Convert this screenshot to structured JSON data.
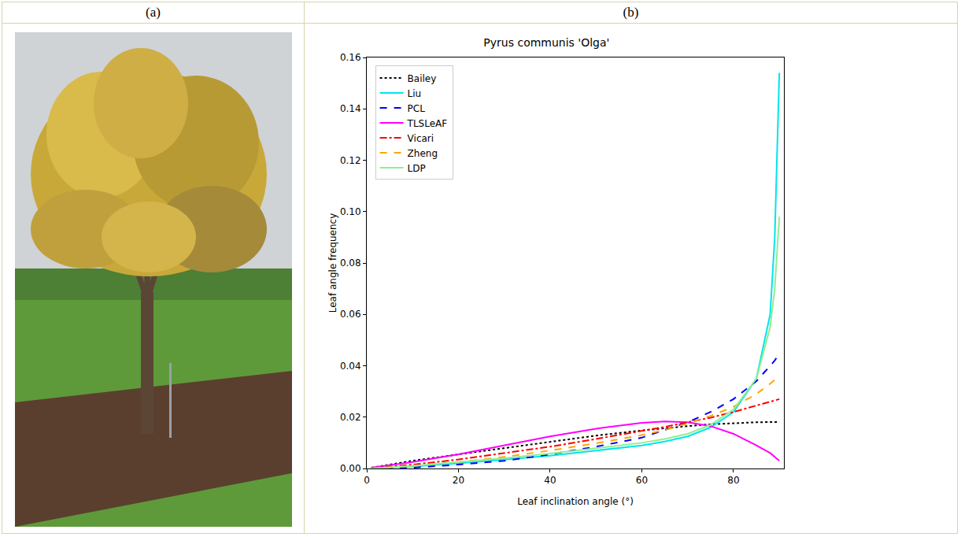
{
  "panel_labels": [
    "(a)",
    "(b)"
  ],
  "chart_data": {
    "type": "line",
    "title": "Pyrus communis 'Olga'",
    "x_label": "Leaf inclination angle (°)",
    "y_label": "Leaf angle frequency",
    "x": [
      1,
      10,
      20,
      30,
      40,
      50,
      60,
      65,
      70,
      75,
      80,
      85,
      88,
      89,
      90
    ],
    "series": [
      {
        "name": "Bailey",
        "color": "#000000",
        "line_style": "dotted",
        "values": [
          0.0003,
          0.003,
          0.0055,
          0.008,
          0.0105,
          0.0128,
          0.0148,
          0.0157,
          0.0165,
          0.0172,
          0.0177,
          0.018,
          0.0181,
          0.0181,
          0.0181
        ]
      },
      {
        "name": "Liu",
        "color": "#00e5ee",
        "line_style": "solid",
        "values": [
          0,
          0.0008,
          0.002,
          0.0035,
          0.005,
          0.007,
          0.009,
          0.0105,
          0.0125,
          0.016,
          0.022,
          0.035,
          0.06,
          0.09,
          0.154
        ]
      },
      {
        "name": "PCL",
        "color": "#0000ff",
        "line_style": "dashed",
        "values": [
          0,
          0.0003,
          0.0015,
          0.003,
          0.0055,
          0.0085,
          0.012,
          0.015,
          0.018,
          0.022,
          0.027,
          0.034,
          0.04,
          0.042,
          0.045
        ]
      },
      {
        "name": "TLSLeAF",
        "color": "#ff00ff",
        "line_style": "solid",
        "values": [
          0.0003,
          0.0025,
          0.0055,
          0.009,
          0.0125,
          0.0155,
          0.0178,
          0.0183,
          0.018,
          0.0165,
          0.0135,
          0.009,
          0.006,
          0.0045,
          0.003
        ]
      },
      {
        "name": "Vicari",
        "color": "#ff0000",
        "line_style": "dashdot",
        "values": [
          0.0002,
          0.0015,
          0.0035,
          0.006,
          0.0085,
          0.0115,
          0.0145,
          0.0162,
          0.018,
          0.0198,
          0.022,
          0.0245,
          0.026,
          0.0265,
          0.027
        ]
      },
      {
        "name": "Zheng",
        "color": "#ffa500",
        "line_style": "dashed",
        "values": [
          0,
          0.001,
          0.0025,
          0.0045,
          0.007,
          0.0098,
          0.013,
          0.015,
          0.0175,
          0.0205,
          0.024,
          0.029,
          0.033,
          0.0345,
          0.036
        ]
      },
      {
        "name": "LDP",
        "color": "#90ee90",
        "line_style": "solid",
        "values": [
          0,
          0.001,
          0.0025,
          0.004,
          0.0058,
          0.0078,
          0.01,
          0.0115,
          0.0135,
          0.017,
          0.023,
          0.035,
          0.055,
          0.07,
          0.098
        ]
      }
    ],
    "xlim": [
      0,
      91
    ],
    "xticks": [
      0,
      20,
      40,
      60,
      80
    ],
    "ylim": [
      0,
      0.16
    ],
    "yticks": [
      {
        "value": 0,
        "label": "0.00"
      },
      {
        "value": 0.02,
        "label": "0.02"
      },
      {
        "value": 0.04,
        "label": "0.04"
      },
      {
        "value": 0.06,
        "label": "0.06"
      },
      {
        "value": 0.08,
        "label": "0.08"
      },
      {
        "value": 0.1,
        "label": "0.10"
      },
      {
        "value": 0.12,
        "label": "0.12"
      },
      {
        "value": 0.14,
        "label": "0.14"
      },
      {
        "value": 0.16,
        "label": "0.16"
      }
    ],
    "grid": false,
    "legend": "upper left"
  }
}
